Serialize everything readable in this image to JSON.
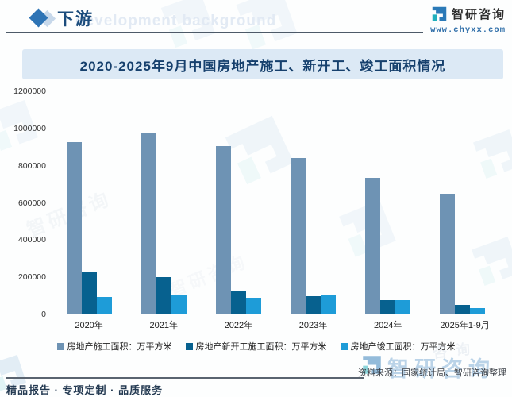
{
  "header": {
    "section_label": "下游",
    "background_watermark": "development background",
    "logo_name": "智研咨询",
    "logo_url": "www.chyxx.com"
  },
  "chart_data": {
    "type": "bar",
    "title": "2020-2025年9月中国房地产施工、新开工、竣工面积情况",
    "categories": [
      "2020年",
      "2021年",
      "2022年",
      "2023年",
      "2024年",
      "2025年1-9月"
    ],
    "series": [
      {
        "name": "房地产施工面积：万平方米",
        "color": "#6e93b4",
        "values": [
          926759,
          975387,
          904999,
          838364,
          733247,
          646000
        ]
      },
      {
        "name": "房地产新开工施工面积：万平方米",
        "color": "#07618f",
        "values": [
          224433,
          198895,
          120587,
          95376,
          73893,
          45400
        ]
      },
      {
        "name": "房地产竣工面积：万平方米",
        "color": "#1e9cd8",
        "values": [
          91218,
          101412,
          86222,
          99831,
          73743,
          31100
        ]
      }
    ],
    "xlabel": "",
    "ylabel": "",
    "ylim": [
      0,
      1200000
    ],
    "y_ticks": [
      0,
      200000,
      400000,
      600000,
      800000,
      1000000,
      1200000
    ],
    "grid": false,
    "legend_position": "bottom"
  },
  "footer": {
    "source_text": "资料来源：国家统计局、智研咨询整理",
    "services_text": "精品报告 · 专项定制 · 品质服务",
    "watermark_logo_text": "智研咨询"
  },
  "colors": {
    "accent_navy": "#1b4c7c",
    "title_banner_bg": "#dce9f5",
    "title_text": "#16406d",
    "logo_blue": "#2b7ab8",
    "logo_teal": "#20b0bc"
  }
}
